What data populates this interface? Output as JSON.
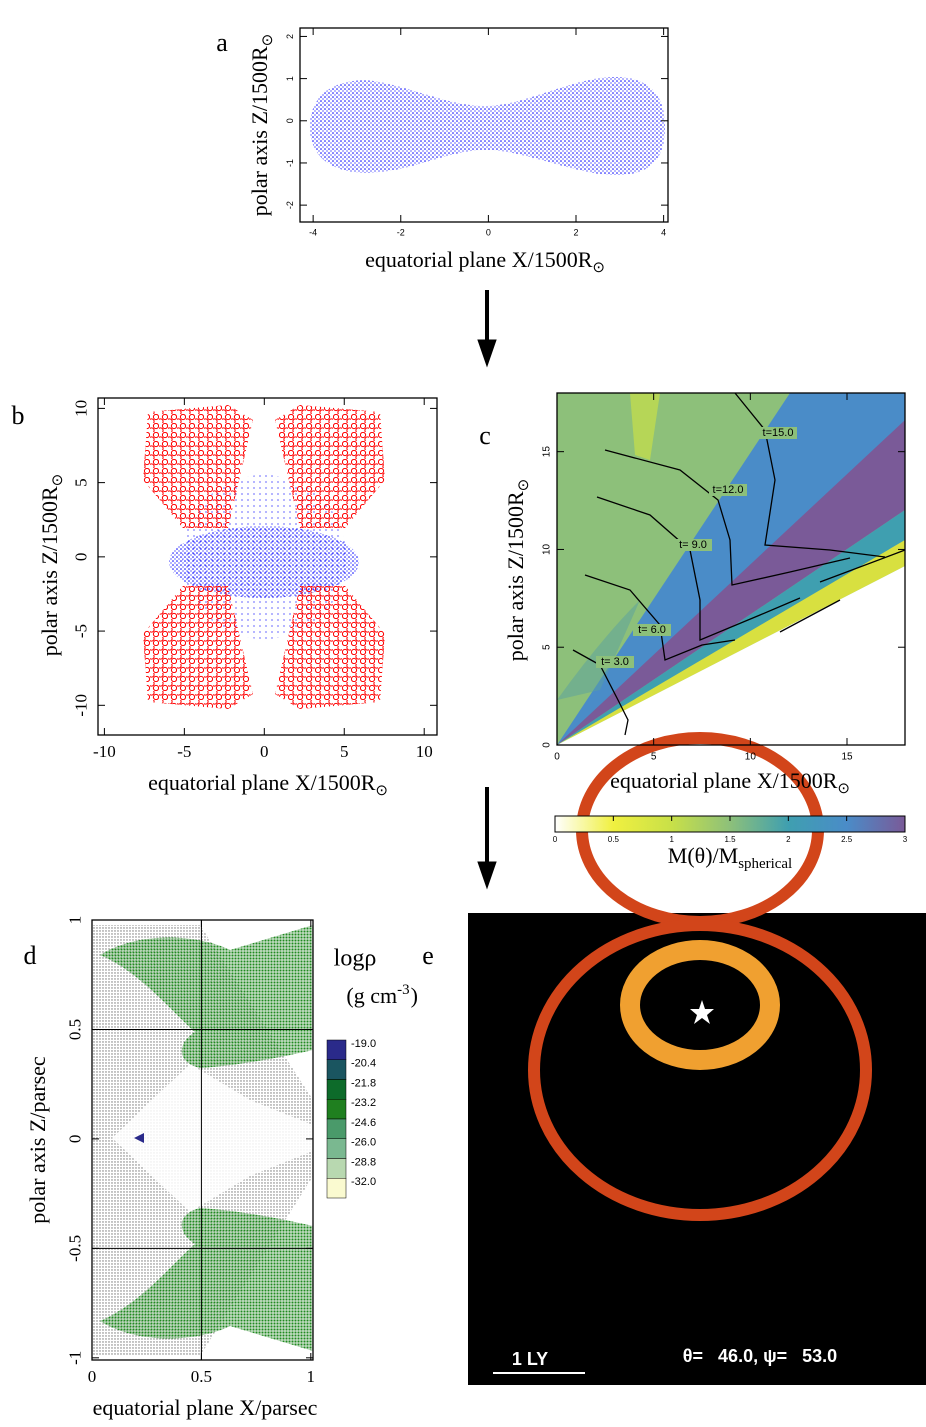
{
  "chart_data": [
    {
      "type": "scatter",
      "panel": "a",
      "x_label": "equatorial plane X/1500R",
      "x_label_sub": "⊙",
      "y_label": "polar axis Z/1500R",
      "y_label_sub": "⊙",
      "xlim": [
        -4.3,
        4.1
      ],
      "xticks": [
        -4,
        -2,
        0,
        2,
        4
      ],
      "ylim": [
        -2.4,
        2.2
      ],
      "yticks": [
        -2,
        -1,
        0,
        1,
        2
      ],
      "colors": [
        "#0000ff"
      ]
    },
    {
      "type": "scatter",
      "panel": "b",
      "x_label": "equatorial plane X/1500R",
      "x_label_sub": "⊙",
      "y_label": "polar axis Z/1500R",
      "y_label_sub": "⊙",
      "xlim": [
        -10.4,
        10.8
      ],
      "xticks": [
        -10,
        -5,
        0,
        5,
        10
      ],
      "ylim": [
        -12,
        10.7
      ],
      "yticks": [
        -10,
        -5,
        0,
        5,
        10
      ],
      "colors": [
        "#0000ff",
        "#ff0000"
      ]
    },
    {
      "type": "contour",
      "panel": "c",
      "x_label": "equatorial plane X/1500R",
      "x_label_sub": "⊙",
      "y_label": "polar axis Z/1500R",
      "y_label_sub": "⊙",
      "xlim": [
        0,
        18
      ],
      "xticks": [
        0,
        5,
        10,
        15
      ],
      "ylim": [
        0,
        18
      ],
      "yticks": [
        0,
        5,
        10,
        15
      ],
      "contour_labels": [
        "t= 3.0",
        "t= 6.0",
        "t= 9.0",
        "t=12.0",
        "t=15.0"
      ],
      "colorbar": {
        "label": "M(θ)/M",
        "label_sub": "spherical",
        "lim": [
          0,
          3
        ],
        "ticks": [
          0,
          0.5,
          1,
          1.5,
          2,
          2.5,
          3
        ],
        "colors": [
          "#ffffff",
          "#f0f040",
          "#c8e048",
          "#8dc07a",
          "#3f9fb0",
          "#4a8cc8",
          "#7a5a98"
        ]
      }
    },
    {
      "type": "scatter",
      "panel": "d",
      "x_label": "equatorial plane X/parsec",
      "y_label": "polar axis Z/parsec",
      "xlim": [
        0,
        1.01
      ],
      "xticks": [
        0,
        0.5,
        1
      ],
      "ylim": [
        -1.01,
        1
      ],
      "yticks": [
        -1,
        -0.5,
        0,
        0.5,
        1
      ],
      "gridlines": {
        "x": [
          0.5
        ],
        "y": [
          -0.5,
          0.5
        ]
      },
      "colorbar": {
        "title": "logρ",
        "unit": "(g cm",
        "unit_sup": "-3",
        "unit_end": ")",
        "levels": [
          {
            "value": -19,
            "label": "-19.0"
          },
          {
            "value": -20.4,
            "label": "-20.4"
          },
          {
            "value": -21.8,
            "label": "-21.8"
          },
          {
            "value": -23.2,
            "label": "-23.2"
          },
          {
            "value": -24.6,
            "label": "-24.6"
          },
          {
            "value": -26,
            "label": "-26.0"
          },
          {
            "value": -28.8,
            "label": "-28.8"
          },
          {
            "value": -32,
            "label": "-32.0"
          }
        ],
        "colors": [
          "#2a2a8a",
          "#1a5560",
          "#0d6b2a",
          "#1f7f1f",
          "#4a9a6a",
          "#7ab890",
          "#b8d8b0",
          "#fafad0"
        ]
      }
    },
    {
      "type": "image",
      "panel": "e",
      "scale_bar_label": "1 LY",
      "annotation": "θ=   46.0, ψ=   53.0"
    }
  ]
}
